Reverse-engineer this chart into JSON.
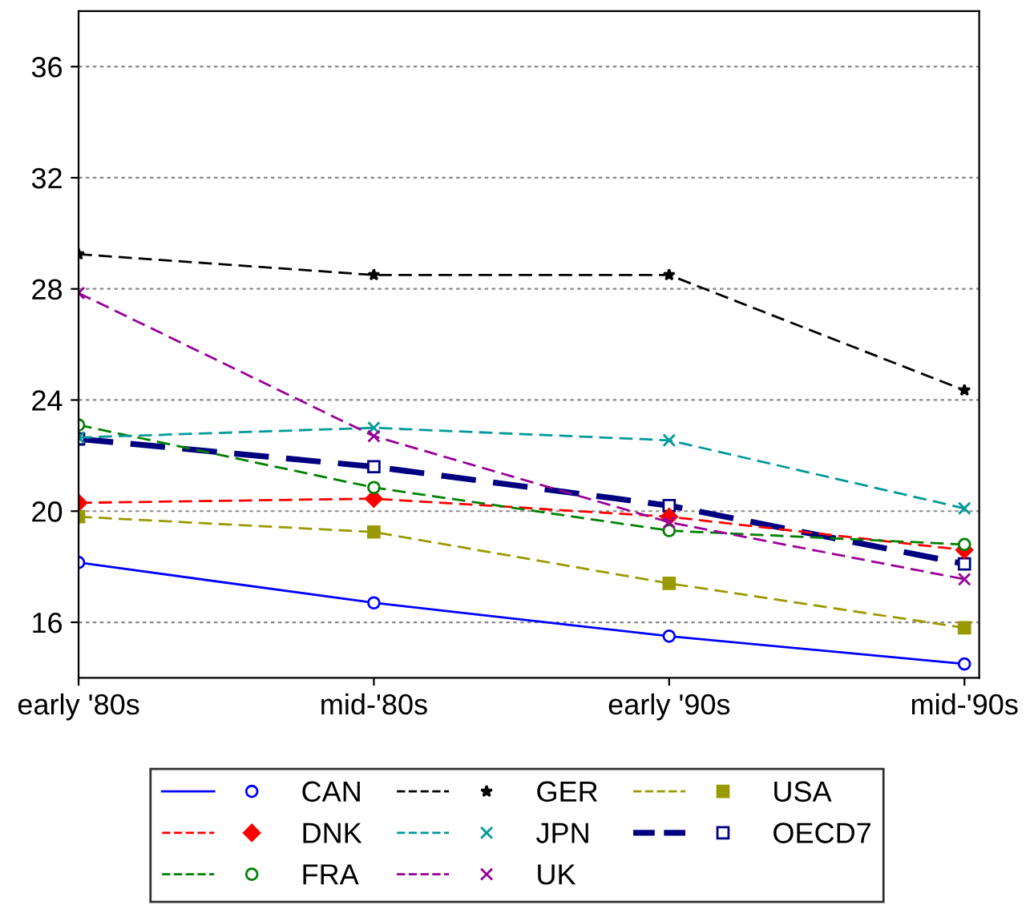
{
  "chart_data": {
    "type": "line",
    "categories": [
      "early '80s",
      "mid-'80s",
      "early '90s",
      "mid-'90s"
    ],
    "series": [
      {
        "name": "CAN",
        "color": "#0000ff",
        "marker": "circle",
        "line_style": "solid",
        "values": [
          18.15,
          16.7,
          15.5,
          14.5
        ]
      },
      {
        "name": "DNK",
        "color": "#ff0000",
        "marker": "diamond",
        "line_style": "dashed",
        "values": [
          20.3,
          20.45,
          19.8,
          18.6
        ]
      },
      {
        "name": "FRA",
        "color": "#008000",
        "marker": "circle",
        "line_style": "dashed",
        "values": [
          23.1,
          20.85,
          19.3,
          18.8
        ]
      },
      {
        "name": "GER",
        "color": "#000000",
        "marker": "star",
        "line_style": "dashed",
        "values": [
          29.25,
          28.5,
          28.5,
          24.35
        ]
      },
      {
        "name": "JPN",
        "color": "#009999",
        "marker": "cross",
        "line_style": "dashed",
        "values": [
          22.65,
          23.0,
          22.55,
          20.1
        ]
      },
      {
        "name": "UK",
        "color": "#990099",
        "marker": "cross",
        "line_style": "dashed",
        "values": [
          27.85,
          22.7,
          19.6,
          17.55
        ]
      },
      {
        "name": "USA",
        "color": "#999900",
        "marker": "square",
        "line_style": "dashed",
        "values": [
          19.8,
          19.25,
          17.4,
          15.8
        ]
      },
      {
        "name": "OECD7",
        "color": "#000080",
        "marker": "square",
        "line_style": "dashed",
        "values": [
          22.6,
          21.6,
          20.2,
          18.1
        ]
      }
    ],
    "ylim": [
      14,
      38
    ],
    "yticks": [
      16,
      20,
      24,
      28,
      32,
      36
    ],
    "grid": "y",
    "legend": "bottom"
  }
}
